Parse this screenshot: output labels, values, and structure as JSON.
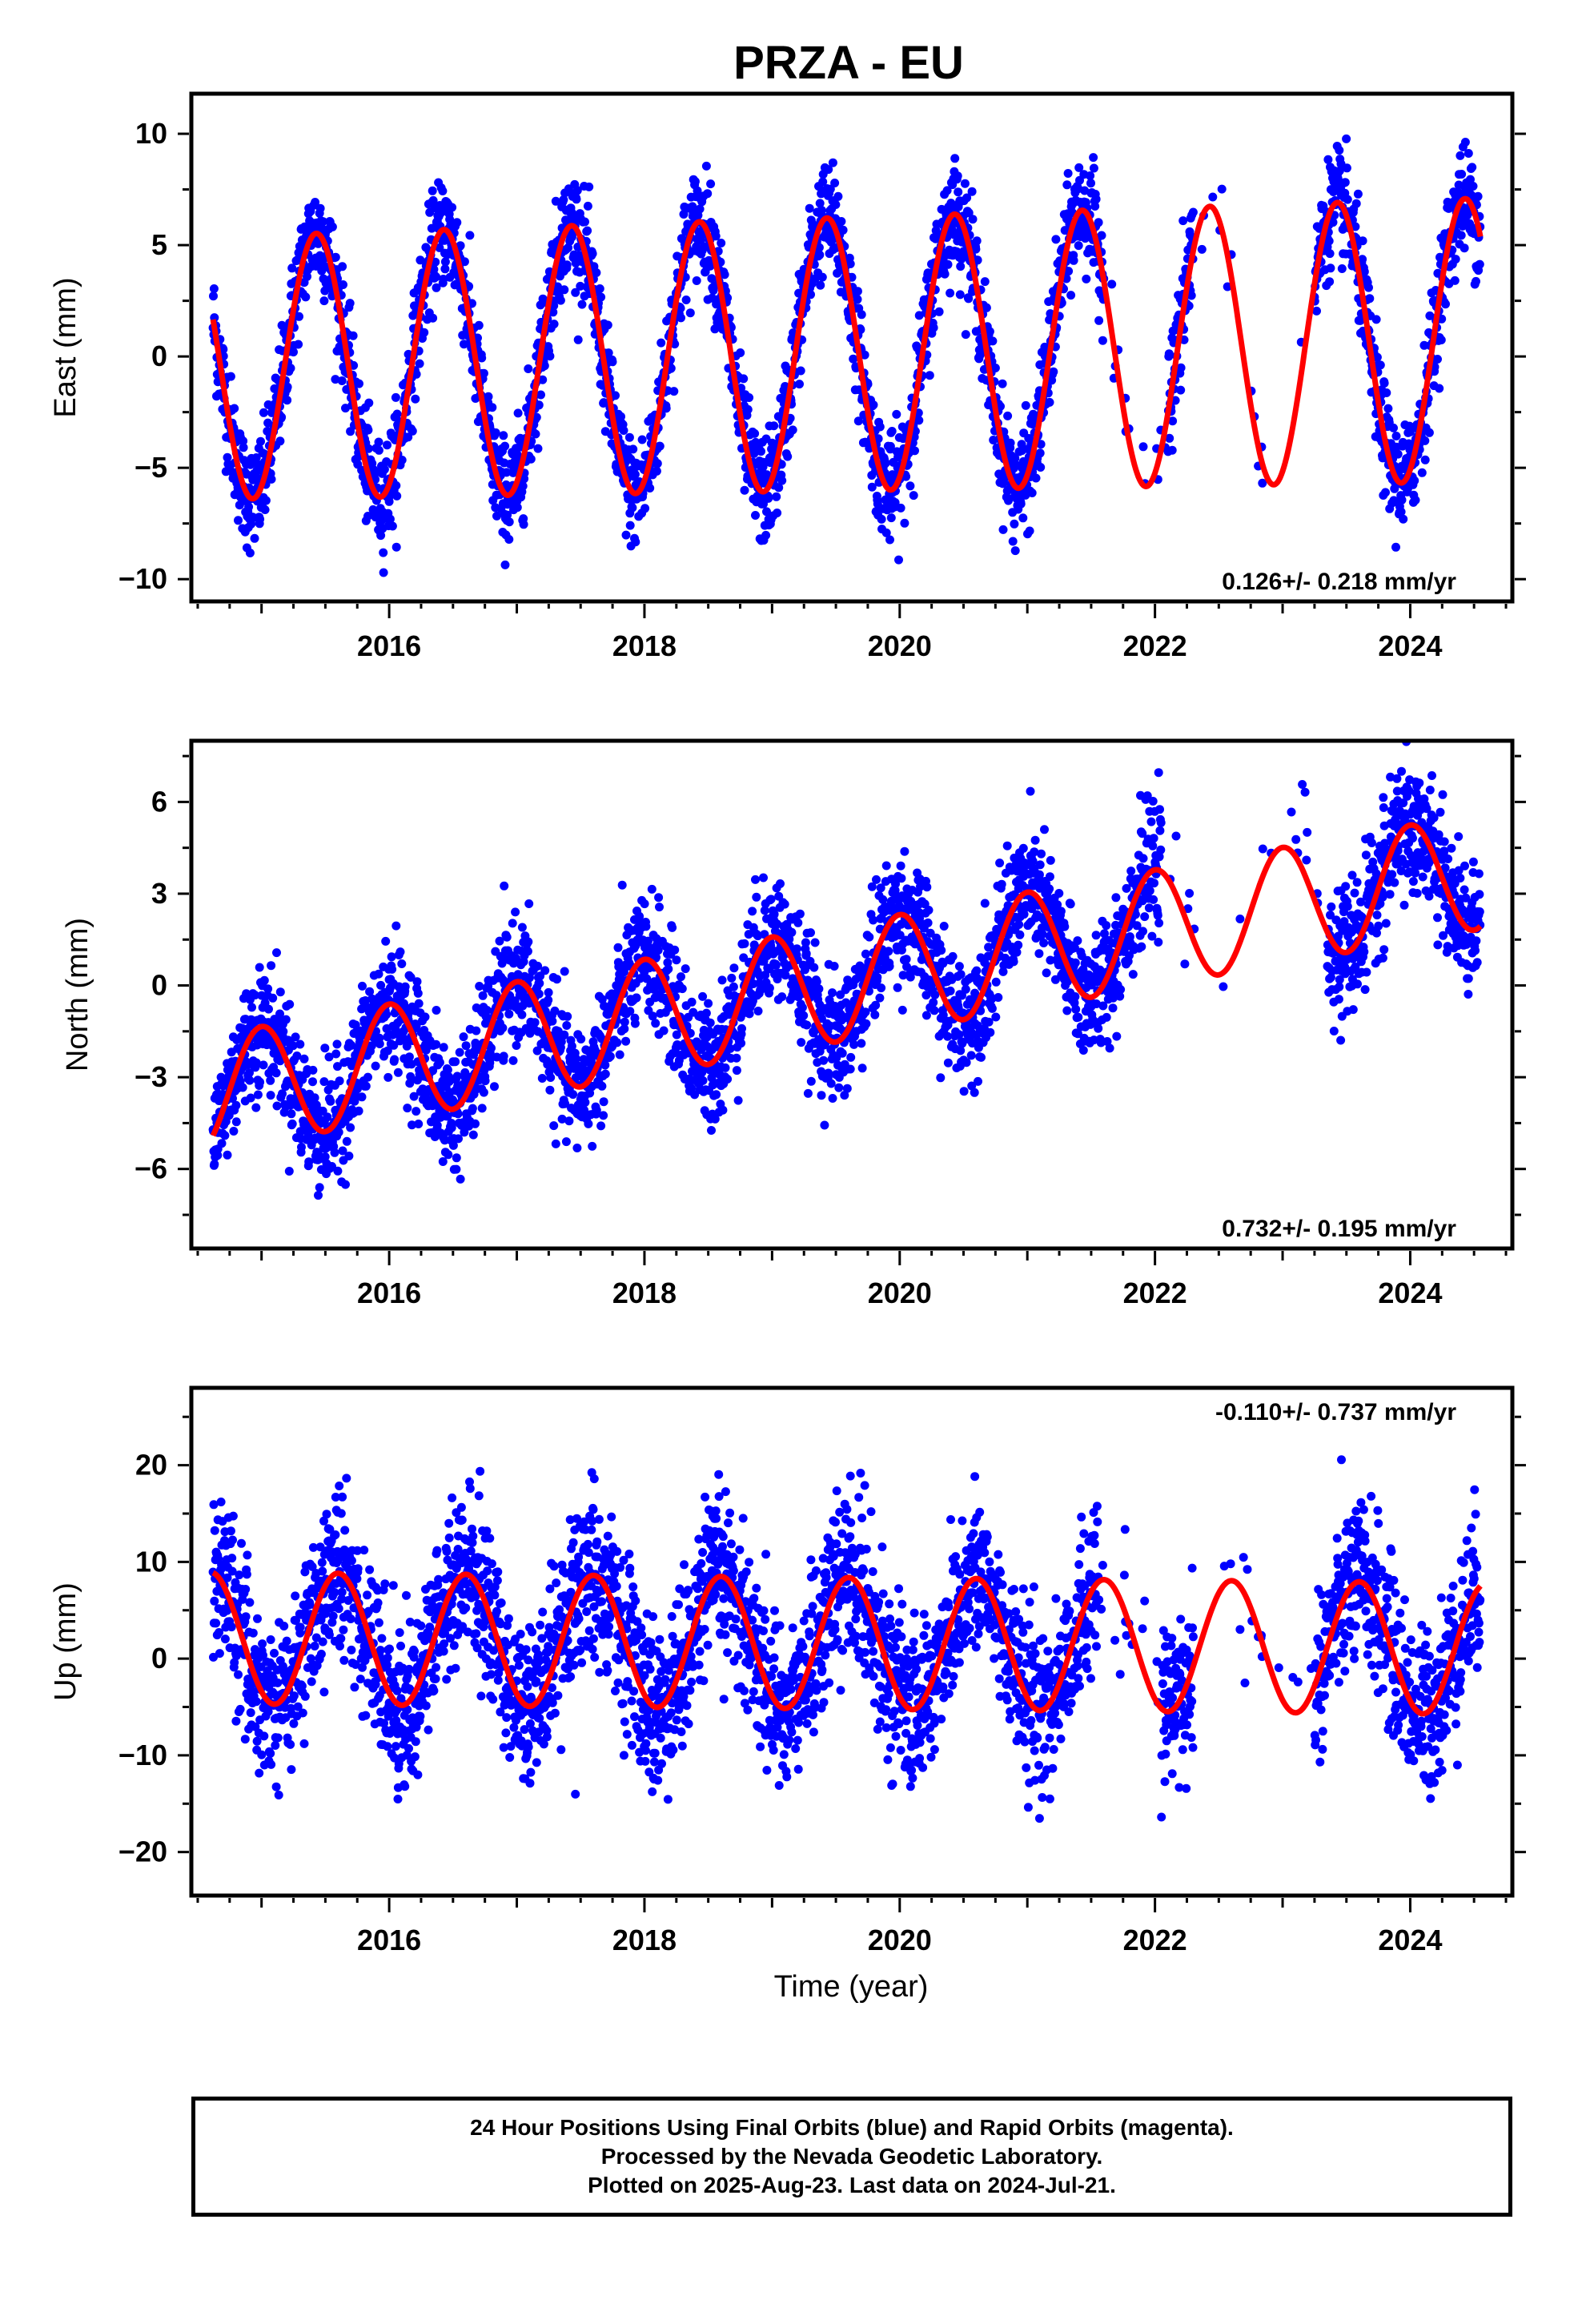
{
  "title": "PRZA - EU",
  "xlabel": "Time (year)",
  "colors": {
    "final_orbits": "#0000ff",
    "model_fit": "#ff0000",
    "frame": "#000000"
  },
  "footer": {
    "line1": "24 Hour Positions Using Final Orbits (blue) and Rapid Orbits (magenta).",
    "line2": "Processed by the Nevada Geodetic Laboratory.",
    "line3": "Plotted on 2025-Aug-23. Last data on 2024-Jul-21."
  },
  "chart_data": [
    {
      "type": "scatter",
      "ylabel": "East (mm)",
      "rate_label": "0.126+/- 0.218 mm/yr",
      "xlim": [
        2014.45,
        2024.8
      ],
      "ylim": [
        -11,
        11.8
      ],
      "xticks": [
        2016,
        2018,
        2020,
        2022,
        2024
      ],
      "yticks": [
        -10,
        -5,
        0,
        5,
        10
      ],
      "grid": false,
      "model": {
        "mean": 0.1,
        "trend": 0.126,
        "annual_amp": 5.9,
        "peak_phase": 0.43,
        "amp_growth": 0.08
      },
      "gaps": [
        [
          2021.6,
          2022.1
        ],
        [
          2022.3,
          2023.25
        ]
      ],
      "scatter_sigma": 1.2,
      "series": [
        {
          "role": "observations",
          "color": "#0000ff"
        },
        {
          "role": "model",
          "color": "#ff0000"
        }
      ]
    },
    {
      "type": "scatter",
      "ylabel": "North (mm)",
      "rate_label": "0.732+/- 0.195 mm/yr",
      "xlim": [
        2014.45,
        2024.8
      ],
      "ylim": [
        -8.6,
        8
      ],
      "xticks": [
        2016,
        2018,
        2020,
        2022,
        2024
      ],
      "yticks": [
        -6,
        -3,
        0,
        3,
        6
      ],
      "grid": false,
      "model": {
        "mean": 0.05,
        "trend": 0.732,
        "annual_amp": 1.9,
        "peak_phase": 0.0,
        "amp_growth": 0.0
      },
      "gaps": [
        [
          2022.05,
          2023.35
        ]
      ],
      "scatter_sigma": 1.0,
      "series": [
        {
          "role": "observations",
          "color": "#0000ff"
        },
        {
          "role": "model",
          "color": "#ff0000"
        }
      ]
    },
    {
      "type": "scatter",
      "ylabel": "Up (mm)",
      "rate_label": "-0.110+/- 0.737 mm/yr",
      "xlim": [
        2014.45,
        2024.8
      ],
      "ylim": [
        -24.5,
        28
      ],
      "xticks": [
        2016,
        2018,
        2020,
        2022,
        2024
      ],
      "yticks": [
        -20,
        -10,
        0,
        10,
        20
      ],
      "grid": false,
      "model": {
        "mean": 1.6,
        "trend": -0.11,
        "annual_amp": 6.8,
        "peak_phase": 0.6,
        "amp_growth": 0.0
      },
      "gaps": [
        [
          2021.55,
          2022.05
        ],
        [
          2022.3,
          2023.25
        ]
      ],
      "scatter_sigma": 4.2,
      "series": [
        {
          "role": "observations",
          "color": "#0000ff"
        },
        {
          "role": "model",
          "color": "#ff0000"
        }
      ]
    }
  ]
}
